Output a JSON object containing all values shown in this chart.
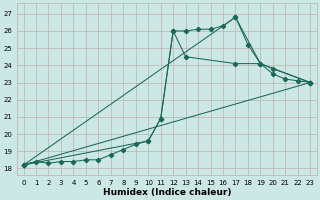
{
  "xlabel": "Humidex (Indice chaleur)",
  "bg_color": "#cce8e4",
  "grid_color": "#c0b0b0",
  "line_color": "#1a6858",
  "xlim": [
    -0.5,
    23.5
  ],
  "ylim": [
    17.6,
    27.6
  ],
  "yticks": [
    18,
    19,
    20,
    21,
    22,
    23,
    24,
    25,
    26,
    27
  ],
  "xticks": [
    0,
    1,
    2,
    3,
    4,
    5,
    6,
    7,
    8,
    9,
    10,
    11,
    12,
    13,
    14,
    15,
    16,
    17,
    18,
    19,
    20,
    21,
    22,
    23
  ],
  "line1_x": [
    0,
    1,
    2,
    3,
    4,
    5,
    6,
    7,
    8,
    9,
    10,
    11,
    12,
    13,
    14,
    15,
    16,
    17,
    18,
    19,
    20,
    21,
    22,
    23
  ],
  "line1_y": [
    18.2,
    18.4,
    18.3,
    18.4,
    18.4,
    18.5,
    18.5,
    18.8,
    19.1,
    19.4,
    19.6,
    20.9,
    26.0,
    26.0,
    26.1,
    26.1,
    26.3,
    26.8,
    25.2,
    24.1,
    23.5,
    23.2,
    23.1,
    23.0
  ],
  "line2_x": [
    0,
    17,
    19,
    23
  ],
  "line2_y": [
    18.2,
    26.8,
    24.1,
    23.0
  ],
  "line3_x": [
    0,
    10,
    11,
    12,
    13,
    17,
    19,
    20,
    23
  ],
  "line3_y": [
    18.2,
    19.6,
    20.9,
    26.0,
    24.5,
    24.1,
    24.1,
    23.8,
    23.0
  ],
  "line4_x": [
    0,
    23
  ],
  "line4_y": [
    18.2,
    23.0
  ]
}
